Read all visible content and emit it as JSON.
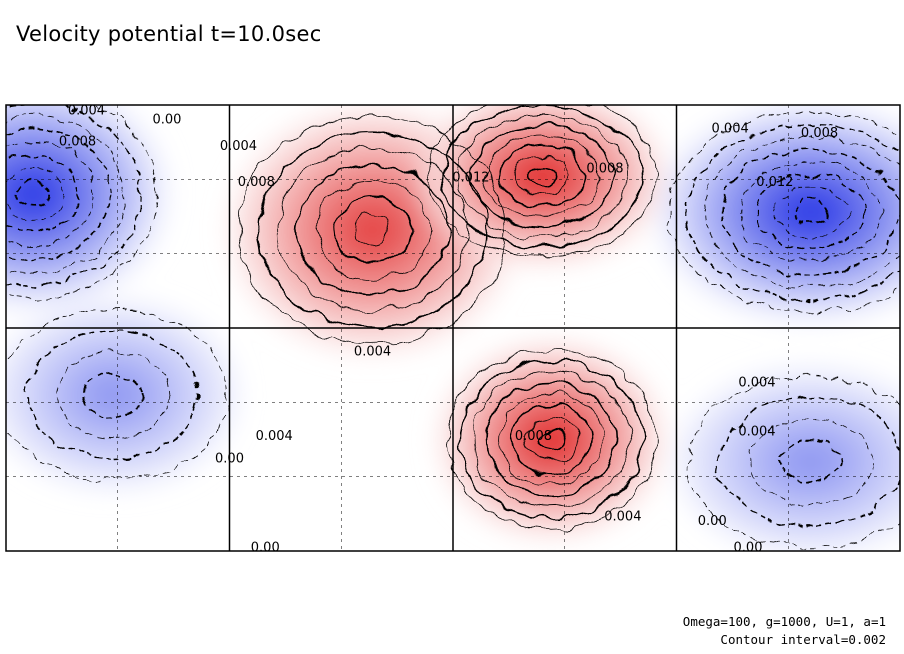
{
  "title": "Velocity potential t=10.0sec",
  "footer": {
    "params": "Omega=100, g=1000, U=1, a=1",
    "interval": "Contour interval=0.002"
  },
  "colors": {
    "positive": "#e03030",
    "negative": "#2a3ee6",
    "frame": "#000000"
  },
  "chart_data": {
    "type": "heatmap",
    "title": "Velocity potential t=10.0sec",
    "xlabel": "",
    "ylabel": "",
    "contour_interval": 0.002,
    "grid": true,
    "colormap": "blue (negative) – white – red (positive)",
    "value_range": [
      -0.016,
      0.016
    ],
    "centers": [
      {
        "sign": "positive",
        "lon_frac": 0.41,
        "lat_frac": 0.28,
        "peak": 0.014
      },
      {
        "sign": "positive",
        "lon_frac": 0.6,
        "lat_frac": 0.16,
        "peak": 0.016
      },
      {
        "sign": "positive",
        "lon_frac": 0.61,
        "lat_frac": 0.75,
        "peak": 0.016
      },
      {
        "sign": "negative",
        "lon_frac": 0.03,
        "lat_frac": 0.2,
        "peak": -0.016
      },
      {
        "sign": "negative",
        "lon_frac": 0.9,
        "lat_frac": 0.24,
        "peak": -0.016
      },
      {
        "sign": "negative",
        "lon_frac": 0.12,
        "lat_frac": 0.65,
        "peak": -0.008
      },
      {
        "sign": "negative",
        "lon_frac": 0.9,
        "lat_frac": 0.8,
        "peak": -0.008
      }
    ],
    "contour_labels": [
      {
        "text": "0.004",
        "lon_frac": 0.09,
        "lat_frac": 0.01
      },
      {
        "text": "0.008",
        "lon_frac": 0.08,
        "lat_frac": 0.08
      },
      {
        "text": "0.00",
        "lon_frac": 0.18,
        "lat_frac": 0.03
      },
      {
        "text": "0.004",
        "lon_frac": 0.26,
        "lat_frac": 0.09
      },
      {
        "text": "0.008",
        "lon_frac": 0.28,
        "lat_frac": 0.17
      },
      {
        "text": "0.012",
        "lon_frac": 0.52,
        "lat_frac": 0.16
      },
      {
        "text": "0.008",
        "lon_frac": 0.67,
        "lat_frac": 0.14
      },
      {
        "text": "0.004",
        "lon_frac": 0.81,
        "lat_frac": 0.05
      },
      {
        "text": "0.008",
        "lon_frac": 0.91,
        "lat_frac": 0.06
      },
      {
        "text": "0.012",
        "lon_frac": 0.86,
        "lat_frac": 0.17
      },
      {
        "text": "0.004",
        "lon_frac": 0.84,
        "lat_frac": 0.62
      },
      {
        "text": "0.004",
        "lon_frac": 0.84,
        "lat_frac": 0.73
      },
      {
        "text": "0.004",
        "lon_frac": 0.3,
        "lat_frac": 0.74
      },
      {
        "text": "0.00",
        "lon_frac": 0.25,
        "lat_frac": 0.79
      },
      {
        "text": "0.008",
        "lon_frac": 0.59,
        "lat_frac": 0.74
      },
      {
        "text": "0.004",
        "lon_frac": 0.69,
        "lat_frac": 0.92
      },
      {
        "text": "0.00",
        "lon_frac": 0.79,
        "lat_frac": 0.93
      },
      {
        "text": "0.00",
        "lon_frac": 0.29,
        "lat_frac": 0.99
      },
      {
        "text": "0.00",
        "lon_frac": 0.83,
        "lat_frac": 0.99
      },
      {
        "text": "0.004",
        "lon_frac": 0.41,
        "lat_frac": 0.55
      }
    ]
  }
}
